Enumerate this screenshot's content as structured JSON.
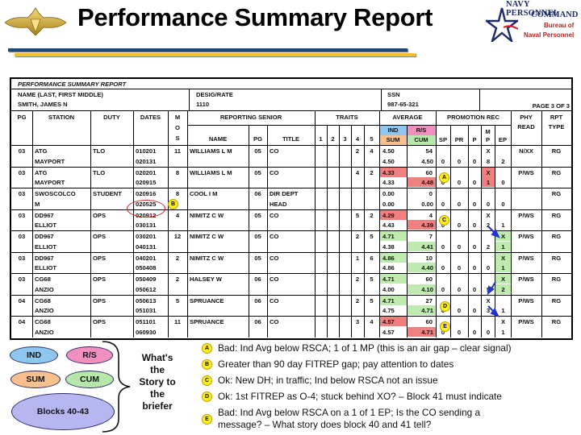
{
  "header": {
    "title": "Performance Summary Report",
    "logo_lines": [
      "NAVY PERSONNEL",
      "COMMAND",
      "Bureau of",
      "Naval Personnel"
    ],
    "badge_icon": "surface-warfare-officer-pin-icon",
    "colors": {
      "blue_bar": "#1e4880",
      "gold_bar": "#f2c12e"
    }
  },
  "form": {
    "title": "PERFORMANCE SUMMARY REPORT",
    "name_label": "NAME (LAST, FIRST MIDDLE)",
    "name_value": "SMITH, JAMES N",
    "desig_label": "DESIG/RATE",
    "desig_value": "1110",
    "ssn_label": "SSN",
    "ssn_value": "987-65-321",
    "page": "PAGE 3 OF 3",
    "columns": {
      "pg": "PG",
      "station": "STATION",
      "duty": "DUTY",
      "dates": "DATES",
      "mos": [
        "M",
        "O",
        "S"
      ],
      "reporting_senior": "REPORTING SENIOR",
      "rs_name": "NAME",
      "rs_pg": "PG",
      "rs_title": "TITLE",
      "traits": "TRAITS",
      "traits_nums": [
        "1",
        "2",
        "3",
        "4",
        "5"
      ],
      "average": "AVERAGE",
      "ind": "IND",
      "rs": "R/S",
      "sum": "SUM",
      "cum": "CUM",
      "promotion_rec": "PROMOTION REC",
      "sp": "SP",
      "pr": "PR",
      "p": "P",
      "mp": [
        "M",
        "P"
      ],
      "ep": "EP",
      "phy": [
        "PHY",
        "READ"
      ],
      "rpt": [
        "RPT",
        "TYPE"
      ]
    },
    "rows": [
      {
        "pg": "03",
        "station": [
          "ATG",
          "MAYPORT"
        ],
        "duty": "TLO",
        "dates": [
          "010201",
          "020131"
        ],
        "mos": "11",
        "rs_name": "WILLIAMS L M",
        "rs_pg": "05",
        "rs_title": [
          "CO",
          ""
        ],
        "t4": "2",
        "t5": "4",
        "ind": "4.50",
        "rs": "54",
        "sum": "4.50",
        "cum": "4.50",
        "sp": "0",
        "pr": "0",
        "p": "0",
        "mp": [
          "X",
          "8"
        ],
        "ep": [
          "",
          "2"
        ],
        "phy": "N/XX",
        "rpt": "RG",
        "hl": {}
      },
      {
        "pg": "03",
        "station": [
          "ATG",
          "MAYPORT"
        ],
        "duty": "TLO",
        "dates": [
          "020201",
          "020915"
        ],
        "mos": "8",
        "rs_name": "WILLIAMS L M",
        "rs_pg": "05",
        "rs_title": [
          "CO",
          ""
        ],
        "t4": "4",
        "t5": "2",
        "ind": "4.33",
        "rs": "60",
        "sum": "4.33",
        "cum": "4.48",
        "sp": "0",
        "pr": "0",
        "p": "0",
        "mp": [
          "X",
          "1"
        ],
        "ep": [
          "",
          "0"
        ],
        "phy": "P/WS",
        "rpt": "RG",
        "hl": {
          "ind": "red",
          "cum": "red",
          "mp": "red"
        }
      },
      {
        "pg": "03",
        "station": [
          "SWOSCOLCO",
          "M"
        ],
        "duty": "STUDENT",
        "dates": [
          "020916",
          "020525"
        ],
        "mos": "8",
        "rs_name": "COOL I M",
        "rs_pg": "06",
        "rs_title": [
          "DIR DEPT",
          "HEAD"
        ],
        "t4": "",
        "t5": "",
        "ind": "0.00",
        "rs": "0",
        "sum": "0.00",
        "cum": "0.00",
        "sp": "0",
        "pr": "0",
        "p": "0",
        "mp": [
          "",
          "0"
        ],
        "ep": [
          "",
          "0"
        ],
        "phy": "",
        "rpt": "RG",
        "hl": {}
      },
      {
        "pg": "03",
        "station": [
          "DD967",
          "ELLIOT"
        ],
        "duty": "OPS",
        "dates": [
          "020912",
          "030131"
        ],
        "mos": "4",
        "rs_name": "NIMITZ  C W",
        "rs_pg": "05",
        "rs_title": [
          "CO",
          ""
        ],
        "t4": "5",
        "t5": "2",
        "ind": "4.29",
        "rs": "4",
        "sum": "4.43",
        "cum": "4.39",
        "sp": "0",
        "pr": "0",
        "p": "0",
        "mp": [
          "X",
          "2"
        ],
        "ep": [
          "",
          "1"
        ],
        "phy": "P/WS",
        "rpt": "RG",
        "hl": {
          "ind": "red",
          "cum": "red"
        }
      },
      {
        "pg": "03",
        "station": [
          "DD967",
          "ELLIOT"
        ],
        "duty": "OPS",
        "dates": [
          "030201",
          "040131"
        ],
        "mos": "12",
        "rs_name": "NIMITZ  C W",
        "rs_pg": "05",
        "rs_title": [
          "CO",
          ""
        ],
        "t4": "2",
        "t5": "5",
        "ind": "4.71",
        "rs": "7",
        "sum": "4.38",
        "cum": "4.41",
        "sp": "0",
        "pr": "0",
        "p": "0",
        "mp": [
          "",
          "2"
        ],
        "ep": [
          "X",
          "1"
        ],
        "phy": "P/WS",
        "rpt": "RG",
        "hl": {
          "ind": "green",
          "cum": "green",
          "ep": "green"
        }
      },
      {
        "pg": "03",
        "station": [
          "DD967",
          "ELLIOT"
        ],
        "duty": "OPS",
        "dates": [
          "040201",
          "050408"
        ],
        "mos": "2",
        "rs_name": "NIMITZ  C W",
        "rs_pg": "05",
        "rs_title": [
          "CO",
          ""
        ],
        "t4": "1",
        "t5": "6",
        "ind": "4.86",
        "rs": "10",
        "sum": "4.86",
        "cum": "4.40",
        "sp": "0",
        "pr": "0",
        "p": "0",
        "mp": [
          "",
          "0"
        ],
        "ep": [
          "X",
          "1"
        ],
        "phy": "P/WS",
        "rpt": "RG",
        "hl": {
          "ind": "green",
          "cum": "green",
          "ep": "green"
        }
      },
      {
        "pg": "03",
        "station": [
          "CG68",
          "ANZIO"
        ],
        "duty": "OPS",
        "dates": [
          "050409",
          "050612"
        ],
        "mos": "2",
        "rs_name": "HALSEY W",
        "rs_pg": "06",
        "rs_title": [
          "CO",
          ""
        ],
        "t4": "2",
        "t5": "5",
        "ind": "4.71",
        "rs": "60",
        "sum": "4.00",
        "cum": "4.10",
        "sp": "0",
        "pr": "0",
        "p": "0",
        "mp": [
          "",
          "5"
        ],
        "ep": [
          "X",
          "2"
        ],
        "phy": "P/WS",
        "rpt": "RG",
        "hl": {
          "ind": "green",
          "cum": "green",
          "ep": "green"
        }
      },
      {
        "pg": "04",
        "station": [
          "CG68",
          "ANZIO"
        ],
        "duty": "OPS",
        "dates": [
          "050613",
          "051031"
        ],
        "mos": "5",
        "rs_name": "SPRUANCE",
        "rs_pg": "06",
        "rs_title": [
          "CO",
          ""
        ],
        "t4": "2",
        "t5": "5",
        "ind": "4.71",
        "rs": "27",
        "sum": "4.75",
        "cum": "4.71",
        "sp": "0",
        "pr": "0",
        "p": "0",
        "mp": [
          "X",
          "3"
        ],
        "ep": [
          "",
          "1"
        ],
        "phy": "P/WS",
        "rpt": "RG",
        "hl": {
          "ind": "green",
          "cum": "green"
        }
      },
      {
        "pg": "04",
        "station": [
          "CG68",
          "ANZIO"
        ],
        "duty": "OPS",
        "dates": [
          "051101",
          "060930"
        ],
        "mos": "11",
        "rs_name": "SPRUANCE",
        "rs_pg": "06",
        "rs_title": [
          "CO",
          ""
        ],
        "t4": "3",
        "t5": "4",
        "ind": "4.57",
        "rs": "60",
        "sum": "4.57",
        "cum": "4.71",
        "sp": "0",
        "pr": "0",
        "p": "0",
        "mp": [
          "",
          "0"
        ],
        "ep": [
          "X",
          "1"
        ],
        "phy": "P/WS",
        "rpt": "RG",
        "hl": {
          "ind": "red",
          "cum": "red"
        }
      }
    ]
  },
  "markers": {
    "A": "A",
    "B": "B",
    "C": "C",
    "D": "D",
    "E": "E"
  },
  "legend": {
    "ind": "IND",
    "rs": "R/S",
    "sum": "SUM",
    "cum": "CUM",
    "blocks": "Blocks 40-43",
    "story": [
      "What's",
      "the",
      "Story to",
      "the",
      "briefer"
    ],
    "colors": {
      "ind": "#8fc6ef",
      "rs": "#f28fc1",
      "sum": "#f8c08c",
      "cum": "#b6e8a9",
      "blocks": "#b6b6f0"
    }
  },
  "notes": [
    {
      "marker": "A",
      "text": "Bad: Ind Avg below RSCA; 1 of 1 MP (this is an air gap – clear signal)"
    },
    {
      "marker": "B",
      "text": "Greater than 90 day FITREP gap; pay attention to dates"
    },
    {
      "marker": "C",
      "text": "Ok: New DH; in traffic; Ind below RSCA not an issue"
    },
    {
      "marker": "D",
      "text": "Ok: 1st FITREP as O-4; stuck behind XO? – Block 41 must indicate"
    },
    {
      "marker": "E",
      "text": [
        "Bad: Ind Avg below RSCA on a 1 of 1 EP; Is the CO sending a",
        "message? – What story does block 40 and 41 tell?"
      ]
    }
  ]
}
